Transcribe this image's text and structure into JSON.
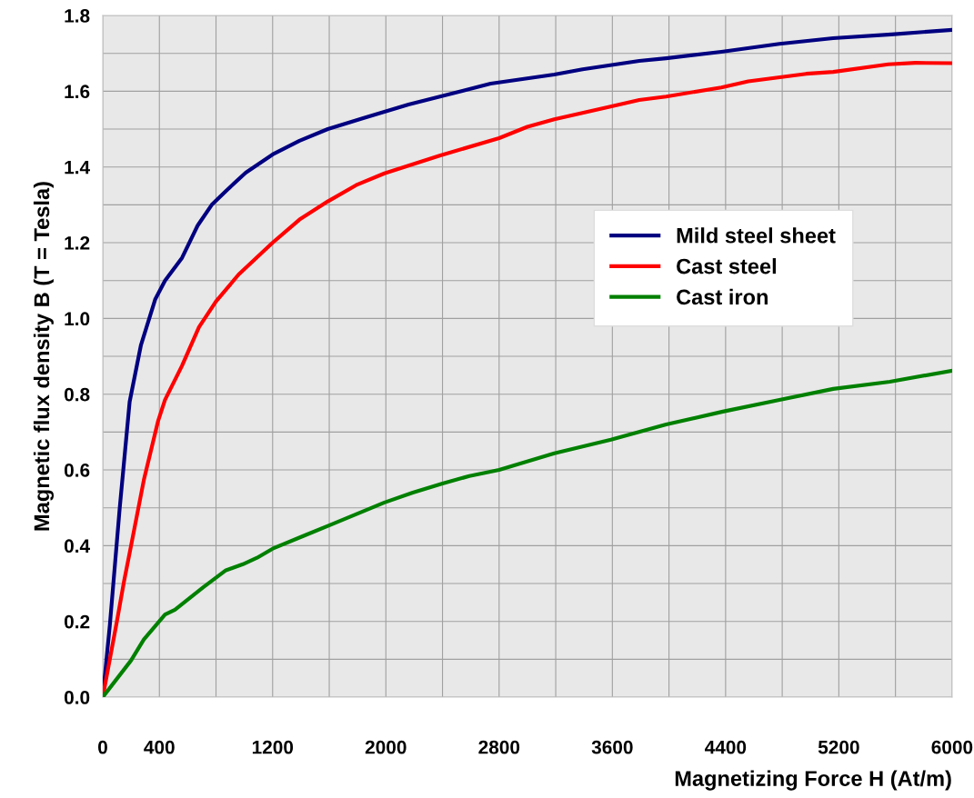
{
  "chart_data": {
    "type": "line",
    "xlabel": "Magnetizing Force H (At/m)",
    "ylabel": "Magnetic flux density B (T = Tesla)",
    "xlim": [
      0,
      6000
    ],
    "ylim": [
      0,
      1.8
    ],
    "xticks": [
      0,
      400,
      {
        "value": 800,
        "label": null
      },
      1200,
      {
        "value": 1600,
        "label": null
      },
      2000,
      {
        "value": 2400,
        "label": null
      },
      2800,
      {
        "value": 3200,
        "label": null
      },
      3600,
      {
        "value": 4000,
        "label": null
      },
      4400,
      {
        "value": 4800,
        "label": null
      },
      5200,
      {
        "value": 5600,
        "label": null
      },
      6000
    ],
    "yticks": [
      {
        "value": 0,
        "label": "0.0"
      },
      {
        "value": 0.1,
        "label": null
      },
      0.2,
      {
        "value": 0.3,
        "label": null
      },
      0.4,
      {
        "value": 0.5,
        "label": null
      },
      0.6,
      {
        "value": 0.7,
        "label": null
      },
      0.8,
      {
        "value": 0.9,
        "label": null
      },
      {
        "value": 1.0,
        "label": "1.0"
      },
      {
        "value": 1.1,
        "label": null
      },
      1.2,
      {
        "value": 1.3,
        "label": null
      },
      1.4,
      {
        "value": 1.5,
        "label": null
      },
      1.6,
      {
        "value": 1.7,
        "label": null
      },
      1.8
    ],
    "grid": true,
    "legend": "right",
    "marker": "none",
    "line_style": "solid",
    "series": [
      {
        "name": "Mild steel sheet",
        "color": "#000080",
        "x": [
          0,
          50,
          120,
          150,
          190,
          270,
          370,
          440,
          560,
          670,
          770,
          880,
          1010,
          1200,
          1390,
          1590,
          1840,
          2160,
          2490,
          2740,
          3190,
          3390,
          3790,
          3980,
          4370,
          4780,
          5160,
          5570,
          6000
        ],
        "values": [
          0,
          0.19,
          0.5,
          0.62,
          0.78,
          0.93,
          1.05,
          1.1,
          1.16,
          1.245,
          1.3,
          1.34,
          1.385,
          1.433,
          1.469,
          1.5,
          1.529,
          1.565,
          1.596,
          1.62,
          1.644,
          1.658,
          1.68,
          1.687,
          1.704,
          1.725,
          1.74,
          1.75,
          1.762
        ]
      },
      {
        "name": "Cast steel",
        "color": "#ff0000",
        "x": [
          0,
          100,
          150,
          200,
          290,
          390,
          440,
          560,
          680,
          800,
          960,
          1200,
          1390,
          1590,
          1790,
          1990,
          2380,
          2800,
          3000,
          3190,
          3580,
          3790,
          3980,
          4370,
          4560,
          4970,
          5160,
          5550,
          5740,
          6000
        ],
        "values": [
          0,
          0.2,
          0.305,
          0.4,
          0.573,
          0.728,
          0.785,
          0.875,
          0.977,
          1.045,
          1.116,
          1.2,
          1.261,
          1.309,
          1.352,
          1.383,
          1.43,
          1.476,
          1.506,
          1.526,
          1.559,
          1.577,
          1.586,
          1.61,
          1.626,
          1.646,
          1.651,
          1.671,
          1.675,
          1.674
        ]
      },
      {
        "name": "Cast iron",
        "color": "#008000",
        "x": [
          0,
          200,
          290,
          440,
          510,
          710,
          870,
          990,
          1090,
          1200,
          1420,
          1610,
          1990,
          2190,
          2400,
          2590,
          2800,
          3190,
          3590,
          3980,
          4380,
          4780,
          5160,
          5560,
          6000
        ],
        "values": [
          0,
          0.097,
          0.152,
          0.218,
          0.231,
          0.29,
          0.335,
          0.351,
          0.368,
          0.392,
          0.426,
          0.455,
          0.514,
          0.54,
          0.564,
          0.584,
          0.6,
          0.644,
          0.68,
          0.72,
          0.754,
          0.785,
          0.814,
          0.833,
          0.862
        ]
      }
    ]
  }
}
